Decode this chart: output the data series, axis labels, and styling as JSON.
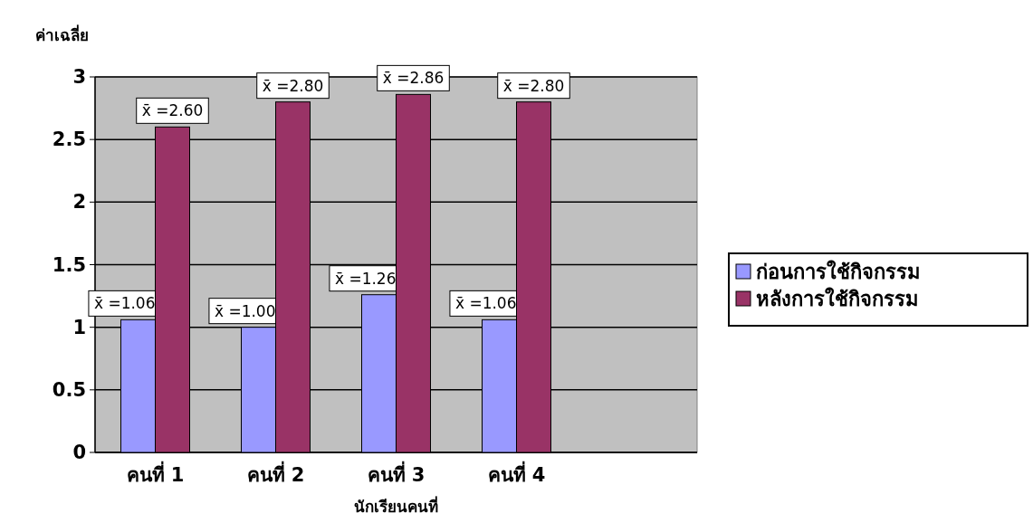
{
  "chart_data": {
    "type": "bar",
    "ylabel": "ค่าเฉลี่ย",
    "xlabel": "นักเรียนคนที่",
    "categories": [
      "คนที่ 1",
      "คนที่ 2",
      "คนที่ 3",
      "คนที่ 4"
    ],
    "series": [
      {
        "name": "ก่อนการใช้กิจกรรม",
        "color": "#9999ff",
        "values": [
          1.06,
          1.0,
          1.26,
          1.06
        ],
        "value_labels": [
          "x̄ =1.06",
          "x̄ =1.00",
          "x̄ =1.26",
          "x̄ =1.06"
        ]
      },
      {
        "name": "หลังการใช้กิจกรรม",
        "color": "#993366",
        "values": [
          2.6,
          2.8,
          2.86,
          2.8
        ],
        "value_labels": [
          "x̄ =2.60",
          "x̄ =2.80",
          "x̄ =2.86",
          "x̄ =2.80"
        ]
      }
    ],
    "ylim": [
      0,
      3
    ],
    "yticks": [
      0,
      0.5,
      1,
      1.5,
      2,
      2.5,
      3
    ],
    "grid": "y",
    "legend": "right"
  }
}
